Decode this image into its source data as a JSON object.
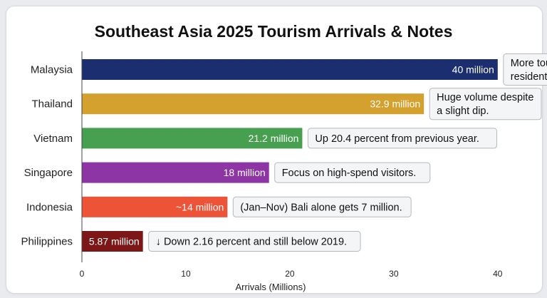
{
  "chart_data": {
    "type": "bar",
    "orientation": "horizontal",
    "title": "Southeast Asia 2025 Tourism Arrivals & Notes",
    "xlabel": "Arrivals (Millions)",
    "ylabel": "",
    "xlim": [
      0,
      42
    ],
    "xticks": [
      0,
      10,
      20,
      30,
      40
    ],
    "grid": false,
    "categories": [
      "Malaysia",
      "Thailand",
      "Vietnam",
      "Singapore",
      "Indonesia",
      "Philippines"
    ],
    "values": [
      40,
      32.9,
      21.2,
      18,
      14,
      5.87
    ],
    "value_labels": [
      "40 million",
      "32.9 million",
      "21.2 million",
      "18 million",
      "~14 million",
      "5.87 million"
    ],
    "notes": [
      [
        "More tourists than",
        "residents."
      ],
      [
        "Huge volume despite",
        "a slight dip."
      ],
      [
        "Up 20.4 percent from previous year."
      ],
      [
        "Focus on high-spend visitors."
      ],
      [
        "(Jan–Nov) Bali alone gets 7 million."
      ],
      [
        "↓ Down 2.16 percent and still below 2019."
      ]
    ],
    "colors": [
      "#1b2f70",
      "#d4a12e",
      "#46a04f",
      "#8e35a5",
      "#ec5337",
      "#7d1616"
    ]
  }
}
